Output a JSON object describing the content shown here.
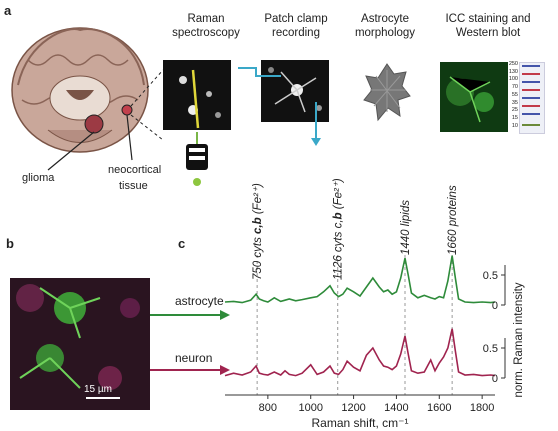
{
  "panel_labels": {
    "a": "a",
    "b": "b",
    "c": "c"
  },
  "panel_a": {
    "brain_labels": {
      "glioma": "glioma",
      "neocortical": "neocortical",
      "tissue": "tissue"
    },
    "headers": [
      {
        "line1": "Raman",
        "line2": "spectroscopy"
      },
      {
        "line1": "Patch clamp",
        "line2": "recording"
      },
      {
        "line1": "Astrocyte",
        "line2": "morphology"
      },
      {
        "line1": "ICC staining and",
        "line2": "Western blot"
      }
    ],
    "blot_ladder": [
      "250",
      "130",
      "100",
      "70",
      "55",
      "35",
      "25",
      "15",
      "10"
    ]
  },
  "panel_b": {
    "scale_bar": "15 µm"
  },
  "colors": {
    "astrocyte": "#2e8b3a",
    "neuron": "#a0244f",
    "green_stain": "#3fae3a"
  },
  "chart_data": {
    "type": "line",
    "xlabel": "Raman shift, cm⁻¹",
    "ylabel": "norm. Raman intensity",
    "xlim": [
      600,
      1860
    ],
    "x_ticks": [
      800,
      1000,
      1200,
      1400,
      1600,
      1800
    ],
    "y_ticks": [
      0,
      0.5
    ],
    "series": [
      {
        "name": "astrocyte",
        "x": [
          600,
          640,
          680,
          720,
          745,
          760,
          780,
          800,
          830,
          860,
          880,
          900,
          930,
          960,
          1000,
          1030,
          1060,
          1090,
          1110,
          1130,
          1150,
          1170,
          1200,
          1230,
          1260,
          1290,
          1320,
          1340,
          1360,
          1380,
          1400,
          1420,
          1440,
          1455,
          1470,
          1500,
          1530,
          1560,
          1580,
          1600,
          1620,
          1640,
          1660,
          1675,
          1690,
          1720,
          1760,
          1800,
          1840,
          1860
        ],
        "y": [
          0.05,
          0.06,
          0.04,
          0.08,
          0.18,
          0.1,
          0.07,
          0.05,
          0.12,
          0.06,
          0.08,
          0.1,
          0.07,
          0.09,
          0.12,
          0.14,
          0.22,
          0.32,
          0.2,
          0.14,
          0.18,
          0.28,
          0.22,
          0.15,
          0.3,
          0.45,
          0.3,
          0.22,
          0.25,
          0.18,
          0.22,
          0.45,
          0.78,
          0.5,
          0.2,
          0.12,
          0.16,
          0.12,
          0.1,
          0.14,
          0.12,
          0.4,
          0.82,
          0.45,
          0.1,
          0.05,
          0.04,
          0.05,
          0.04,
          0.05
        ]
      },
      {
        "name": "neuron",
        "x": [
          600,
          640,
          680,
          720,
          745,
          760,
          780,
          800,
          830,
          860,
          880,
          900,
          930,
          960,
          1000,
          1030,
          1060,
          1090,
          1110,
          1130,
          1150,
          1170,
          1200,
          1230,
          1260,
          1290,
          1320,
          1340,
          1360,
          1380,
          1400,
          1420,
          1440,
          1455,
          1470,
          1500,
          1530,
          1560,
          1580,
          1600,
          1620,
          1640,
          1660,
          1675,
          1690,
          1720,
          1760,
          1800,
          1840,
          1860
        ],
        "y": [
          0.04,
          0.08,
          0.05,
          0.1,
          0.2,
          0.08,
          0.06,
          0.05,
          0.1,
          0.05,
          0.12,
          0.06,
          0.04,
          0.08,
          0.22,
          0.06,
          0.1,
          0.2,
          0.08,
          0.06,
          0.14,
          0.28,
          0.18,
          0.12,
          0.38,
          0.5,
          0.3,
          0.2,
          0.18,
          0.14,
          0.2,
          0.4,
          0.7,
          0.4,
          0.12,
          0.08,
          0.1,
          0.3,
          0.12,
          0.25,
          0.35,
          0.5,
          0.82,
          0.45,
          0.1,
          0.05,
          0.06,
          0.04,
          0.05,
          0.04
        ]
      }
    ],
    "annotations": [
      {
        "x": 750,
        "label_prefix": "750 cyts ",
        "label_bold": "c,b",
        "label_suffix": " (Fe²⁺)"
      },
      {
        "x": 1126,
        "label_prefix": "1126 cyts c,",
        "label_bold": "b",
        "label_suffix": " (Fe²⁺)"
      },
      {
        "x": 1440,
        "label_prefix": "1440 lipids",
        "label_bold": "",
        "label_suffix": ""
      },
      {
        "x": 1660,
        "label_prefix": "1660 proteins",
        "label_bold": "",
        "label_suffix": ""
      }
    ]
  }
}
